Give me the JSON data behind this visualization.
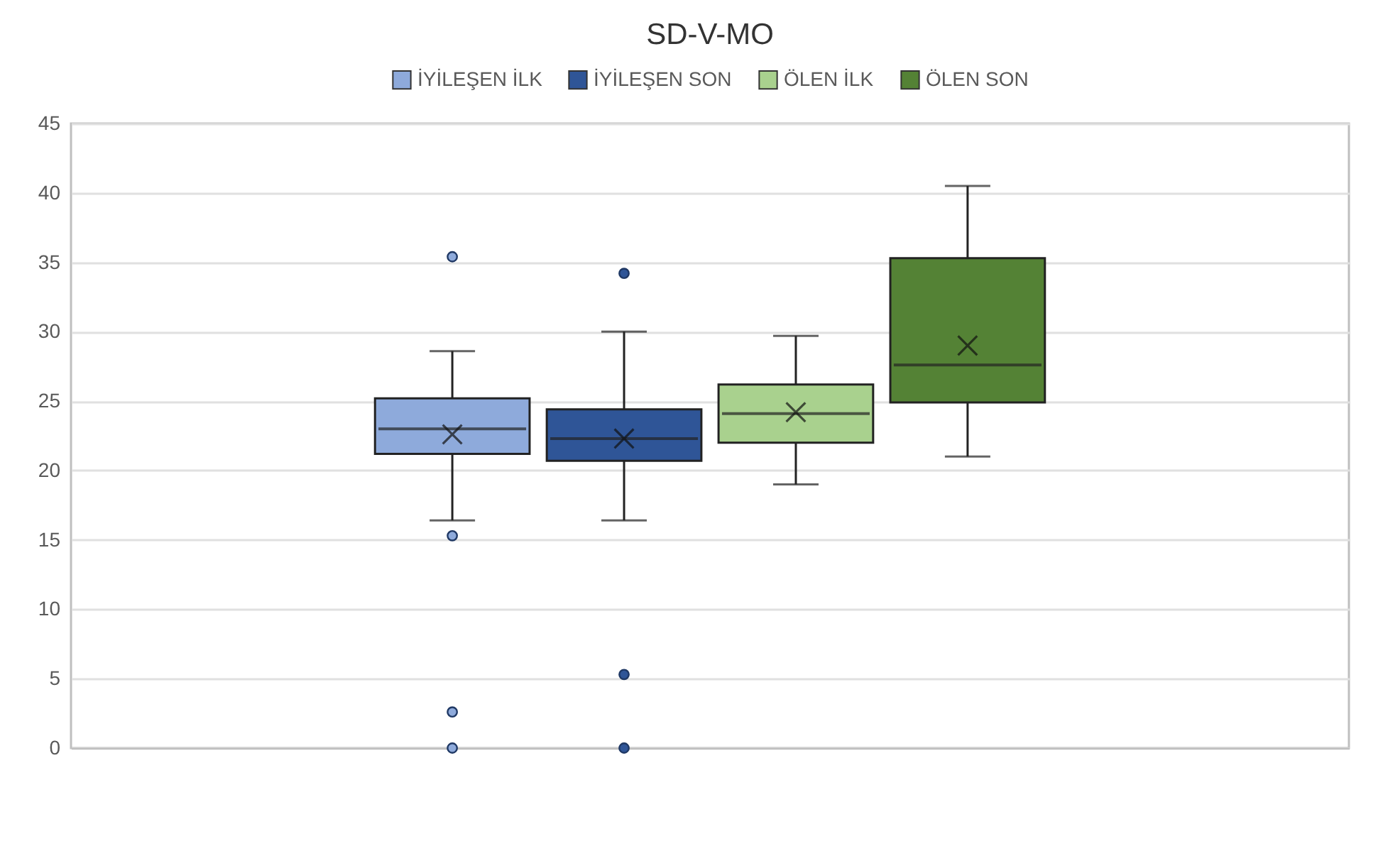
{
  "chart_data": {
    "type": "box",
    "title": "SD-V-MO",
    "categories": [
      null
    ],
    "series": [
      {
        "name": "İYİLEŞEN İLK",
        "color": "#8eaadb",
        "boxes": [
          {
            "low": 16.4,
            "q1": 21.2,
            "median": 23.0,
            "q3": 25.2,
            "high": 28.6,
            "mean": 22.6,
            "outliers": [
              35.4,
              15.3,
              2.6,
              0
            ]
          }
        ]
      },
      {
        "name": "İYİLEŞEN SON",
        "color": "#2f5597",
        "boxes": [
          {
            "low": 16.4,
            "q1": 20.7,
            "median": 22.3,
            "q3": 24.4,
            "high": 30.0,
            "mean": 22.3,
            "outliers": [
              34.2,
              5.3,
              0
            ]
          }
        ]
      },
      {
        "name": "ÖLEN İLK",
        "color": "#a9d18e",
        "boxes": [
          {
            "low": 19.0,
            "q1": 22.0,
            "median": 24.1,
            "q3": 26.2,
            "high": 29.7,
            "mean": 24.2
          }
        ]
      },
      {
        "name": "ÖLEN SON",
        "color": "#548235",
        "boxes": [
          {
            "low": 21.0,
            "q1": 24.9,
            "median": 27.6,
            "q3": 35.3,
            "high": 40.5,
            "mean": 29.0
          }
        ]
      }
    ],
    "ylim": [
      0,
      45
    ],
    "yticks": [
      0,
      5,
      10,
      15,
      20,
      25,
      30,
      35,
      40,
      45
    ],
    "grid": "y",
    "legend": "top"
  }
}
